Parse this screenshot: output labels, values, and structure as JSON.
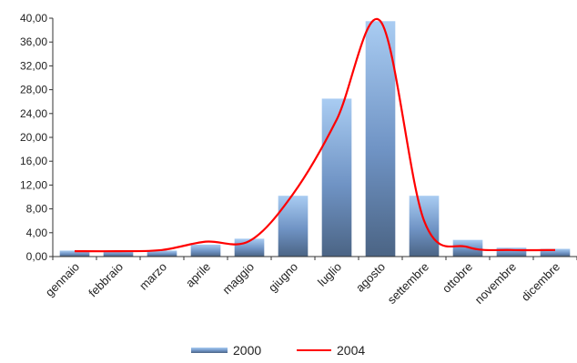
{
  "chart_data": {
    "type": "bar",
    "categories": [
      "gennaio",
      "febbraio",
      "marzo",
      "aprile",
      "maggio",
      "giugno",
      "luglio",
      "agosto",
      "settembre",
      "ottobre",
      "novembre",
      "dicembre"
    ],
    "series": [
      {
        "name": "2000",
        "type": "bar",
        "values": [
          1.0,
          1.0,
          1.0,
          2.0,
          3.0,
          10.2,
          26.5,
          39.5,
          10.2,
          2.8,
          1.5,
          1.3
        ],
        "color": "#5b8fcf"
      },
      {
        "name": "2004",
        "type": "line",
        "values": [
          0.9,
          0.9,
          1.1,
          2.5,
          2.6,
          10.5,
          23.0,
          39.5,
          6.0,
          1.6,
          1.1,
          1.1
        ],
        "color": "#ff0000"
      }
    ],
    "yticks": [
      "0,00",
      "4,00",
      "8,00",
      "12,00",
      "16,00",
      "20,00",
      "24,00",
      "28,00",
      "32,00",
      "36,00",
      "40,00"
    ],
    "ylim": [
      0,
      40
    ],
    "title": "",
    "xlabel": "",
    "ylabel": "",
    "grid": false,
    "legend_position": "bottom"
  }
}
